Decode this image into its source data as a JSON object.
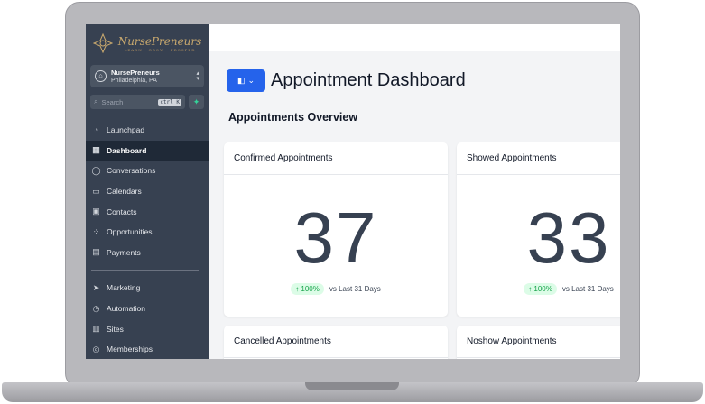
{
  "brand": {
    "name": "NursePreneurs",
    "tagline": "LEARN · GROW · PROSPER"
  },
  "account": {
    "name": "NursePreneurs",
    "location": "Philadelphia, PA"
  },
  "search": {
    "placeholder": "Search",
    "shortcut": "ctrl K"
  },
  "nav": {
    "main": [
      {
        "label": "Launchpad",
        "icon": "rocket-icon"
      },
      {
        "label": "Dashboard",
        "icon": "grid-icon",
        "active": true
      },
      {
        "label": "Conversations",
        "icon": "chat-icon"
      },
      {
        "label": "Calendars",
        "icon": "calendar-icon"
      },
      {
        "label": "Contacts",
        "icon": "contacts-icon"
      },
      {
        "label": "Opportunities",
        "icon": "network-icon"
      },
      {
        "label": "Payments",
        "icon": "invoice-icon"
      }
    ],
    "secondary": [
      {
        "label": "Marketing",
        "icon": "send-icon"
      },
      {
        "label": "Automation",
        "icon": "automation-icon"
      },
      {
        "label": "Sites",
        "icon": "sites-icon"
      },
      {
        "label": "Memberships",
        "icon": "membership-icon"
      }
    ]
  },
  "page": {
    "title": "Appointment Dashboard",
    "section": "Appointments Overview"
  },
  "cards": [
    {
      "title": "Confirmed Appointments",
      "value": "37",
      "change": "↑ 100%",
      "compare": "vs Last 31 Days"
    },
    {
      "title": "Showed Appointments",
      "value": "33",
      "change": "↑ 100%",
      "compare": "vs Last 31 Days"
    },
    {
      "title": "Cancelled Appointments"
    },
    {
      "title": "Noshow Appointments"
    }
  ],
  "colors": {
    "sidebar": "#374151",
    "accent": "#2563eb",
    "positive": "#16a34a"
  }
}
